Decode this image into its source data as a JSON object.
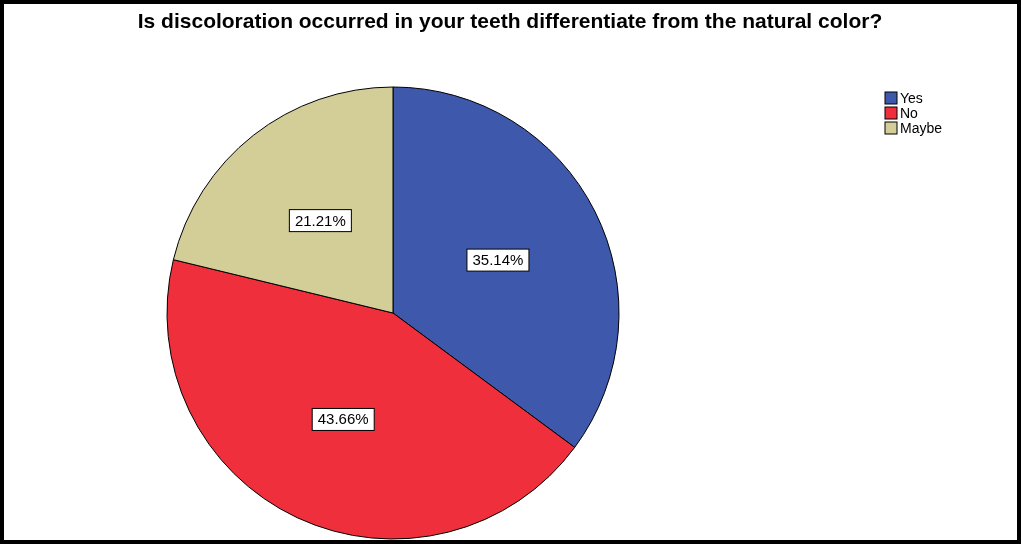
{
  "chart_data": {
    "type": "pie",
    "title": "Is discoloration occurred in your teeth differentiate from the natural color?",
    "categories": [
      "Yes",
      "No",
      "Maybe"
    ],
    "values": [
      35.14,
      43.66,
      21.21
    ],
    "colors": [
      "#3e58ac",
      "#ef2f3b",
      "#d3ce97"
    ],
    "value_labels": [
      "35.14%",
      "43.66%",
      "21.21%"
    ],
    "legend": "top right"
  }
}
